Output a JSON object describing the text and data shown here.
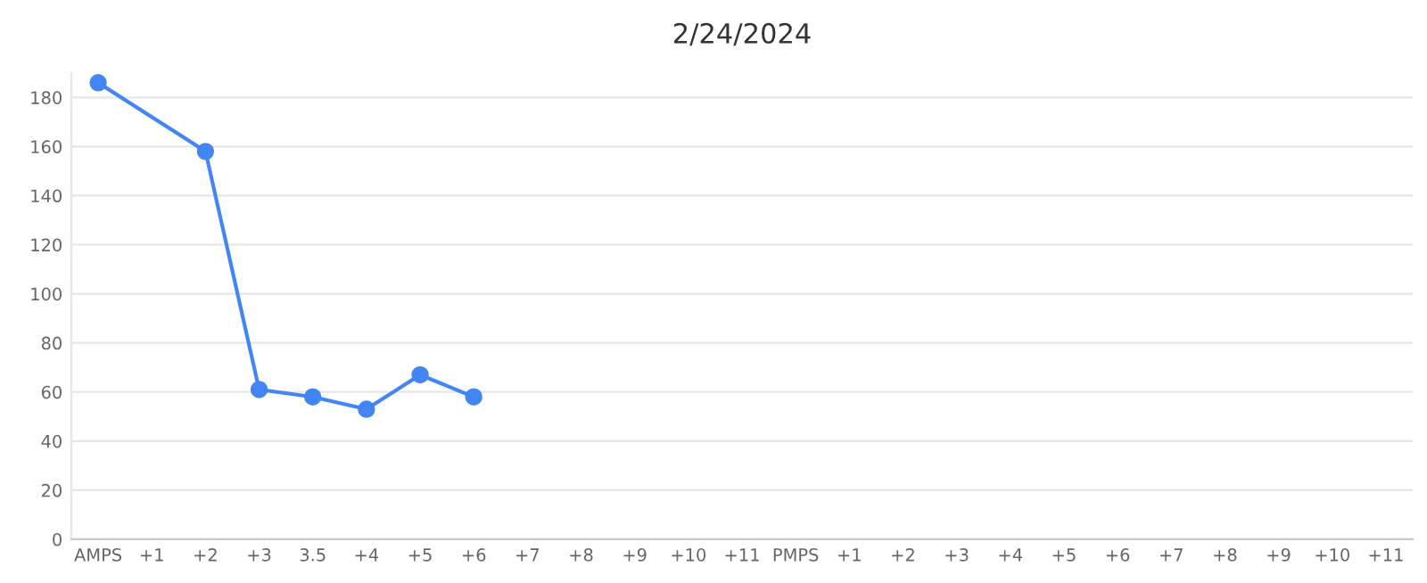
{
  "chart_data": {
    "type": "line",
    "title": "2/24/2024",
    "categories": [
      "AMPS",
      "+1",
      "+2",
      "+3",
      "3.5",
      "+4",
      "+5",
      "+6",
      "+7",
      "+8",
      "+9",
      "+10",
      "+11",
      "PMPS",
      "+1",
      "+2",
      "+3",
      "+4",
      "+5",
      "+6",
      "+7",
      "+8",
      "+9",
      "+10",
      "+11"
    ],
    "series": [
      {
        "color": "#4285f4",
        "values": [
          186,
          null,
          158,
          61,
          58,
          53,
          67,
          58,
          null,
          null,
          null,
          null,
          null,
          null,
          null,
          null,
          null,
          null,
          null,
          null,
          null,
          null,
          null,
          null,
          null
        ]
      }
    ],
    "ylim": [
      0,
      190
    ],
    "yticks": [
      0,
      20,
      40,
      60,
      80,
      100,
      120,
      140,
      160,
      180
    ],
    "grid": "y",
    "marker": "circle",
    "line_style": "solid",
    "legend": false
  }
}
